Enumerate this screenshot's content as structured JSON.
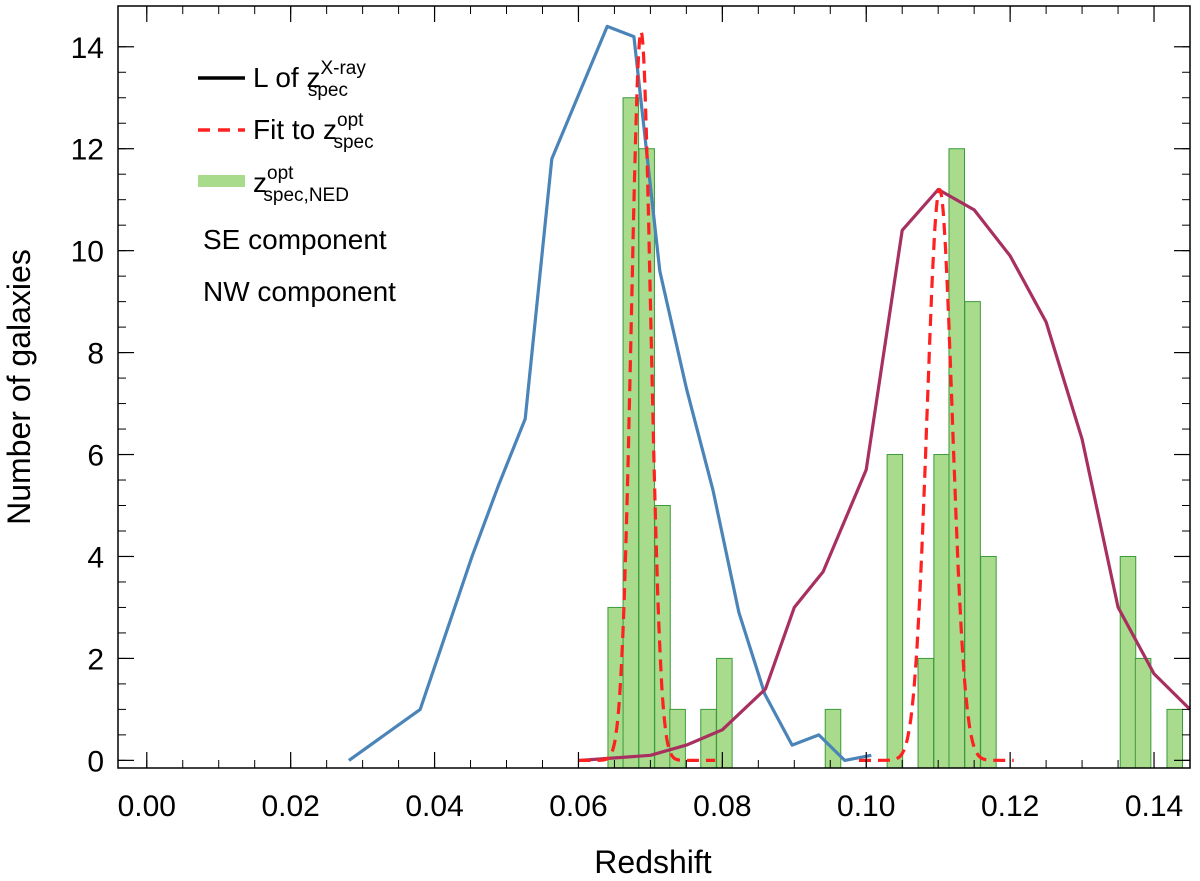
{
  "chart_data": {
    "type": "histogram+line",
    "xlabel": "Redshift",
    "ylabel": "Number of galaxies",
    "xlim": [
      -0.004,
      0.145
    ],
    "ylim": [
      -0.15,
      14.8
    ],
    "xticks": [
      0.0,
      0.02,
      0.04,
      0.06,
      0.08,
      0.1,
      0.12,
      0.14
    ],
    "xtick_labels": [
      "0.00",
      "0.02",
      "0.04",
      "0.06",
      "0.08",
      "0.10",
      "0.12",
      "0.14"
    ],
    "yticks": [
      0,
      2,
      4,
      6,
      8,
      10,
      12,
      14
    ],
    "ytick_labels": [
      "0",
      "2",
      "4",
      "6",
      "8",
      "10",
      "12",
      "14"
    ],
    "x_minor_step": 0.005,
    "y_minor_step": 0.5,
    "histogram": {
      "name": "z_spec,NED opt",
      "color": "#a8dc8c",
      "edge_color": "#3a9a3a",
      "bin_width": 0.00216,
      "bins": [
        {
          "left": 0.0641,
          "count": 3
        },
        {
          "left": 0.0662,
          "count": 13
        },
        {
          "left": 0.0684,
          "count": 12
        },
        {
          "left": 0.0706,
          "count": 5
        },
        {
          "left": 0.0727,
          "count": 1
        },
        {
          "left": 0.077,
          "count": 1
        },
        {
          "left": 0.0792,
          "count": 2
        },
        {
          "left": 0.0943,
          "count": 1
        },
        {
          "left": 0.1029,
          "count": 6
        },
        {
          "left": 0.1072,
          "count": 2
        },
        {
          "left": 0.1094,
          "count": 6
        },
        {
          "left": 0.1115,
          "count": 12
        },
        {
          "left": 0.1137,
          "count": 9
        },
        {
          "left": 0.1159,
          "count": 4
        },
        {
          "left": 0.1353,
          "count": 4
        },
        {
          "left": 0.1374,
          "count": 2
        },
        {
          "left": 0.1418,
          "count": 1
        }
      ]
    },
    "series": [
      {
        "name": "SE component",
        "color": "#4b84b8",
        "style": "solid",
        "x": [
          0.0281,
          0.038,
          0.0416,
          0.0452,
          0.0489,
          0.0526,
          0.0563,
          0.064,
          0.0677,
          0.0713,
          0.075,
          0.0787,
          0.0823,
          0.0859,
          0.0897,
          0.0934,
          0.097,
          0.1007
        ],
        "y": [
          0.0,
          1.0,
          2.5,
          4.0,
          5.4,
          6.7,
          11.8,
          14.4,
          14.2,
          9.6,
          7.3,
          5.3,
          2.9,
          1.3,
          0.3,
          0.5,
          0.0,
          0.1
        ]
      },
      {
        "name": "NW component",
        "color": "#a83060",
        "style": "solid",
        "x": [
          0.0603,
          0.07,
          0.075,
          0.08,
          0.086,
          0.09,
          0.094,
          0.1,
          0.105,
          0.11,
          0.115,
          0.12,
          0.125,
          0.13,
          0.135,
          0.14,
          0.145
        ],
        "y": [
          0.0,
          0.1,
          0.3,
          0.6,
          1.4,
          3.0,
          3.7,
          5.7,
          10.4,
          11.2,
          10.8,
          9.9,
          8.6,
          6.3,
          3.0,
          1.7,
          1.0
        ]
      },
      {
        "name": "Fit to z_spec opt",
        "color": "#ff2020",
        "style": "dashed",
        "gaussians": [
          {
            "mu": 0.0687,
            "sigma": 0.00135,
            "amp": 14.3,
            "from": 0.06,
            "to": 0.079
          },
          {
            "mu": 0.1102,
            "sigma": 0.00175,
            "amp": 11.2,
            "from": 0.099,
            "to": 0.1205
          }
        ]
      }
    ],
    "legend": {
      "position": "top-left",
      "entries": [
        {
          "key": "black-line",
          "text": "L of z",
          "sup": "X-ray",
          "sub": "spec",
          "color": "#000000"
        },
        {
          "key": "red-dashed",
          "text": "Fit to z",
          "sup": "opt",
          "sub": "spec",
          "color": "#ff2020"
        },
        {
          "key": "green-bar",
          "text": "z",
          "sup": "opt",
          "sub": "spec,NED",
          "color": "#a8dc8c"
        }
      ],
      "annotations": [
        {
          "text": "SE component",
          "color": "#4b84b8"
        },
        {
          "text": "NW component",
          "color": "#a83060"
        }
      ]
    }
  }
}
